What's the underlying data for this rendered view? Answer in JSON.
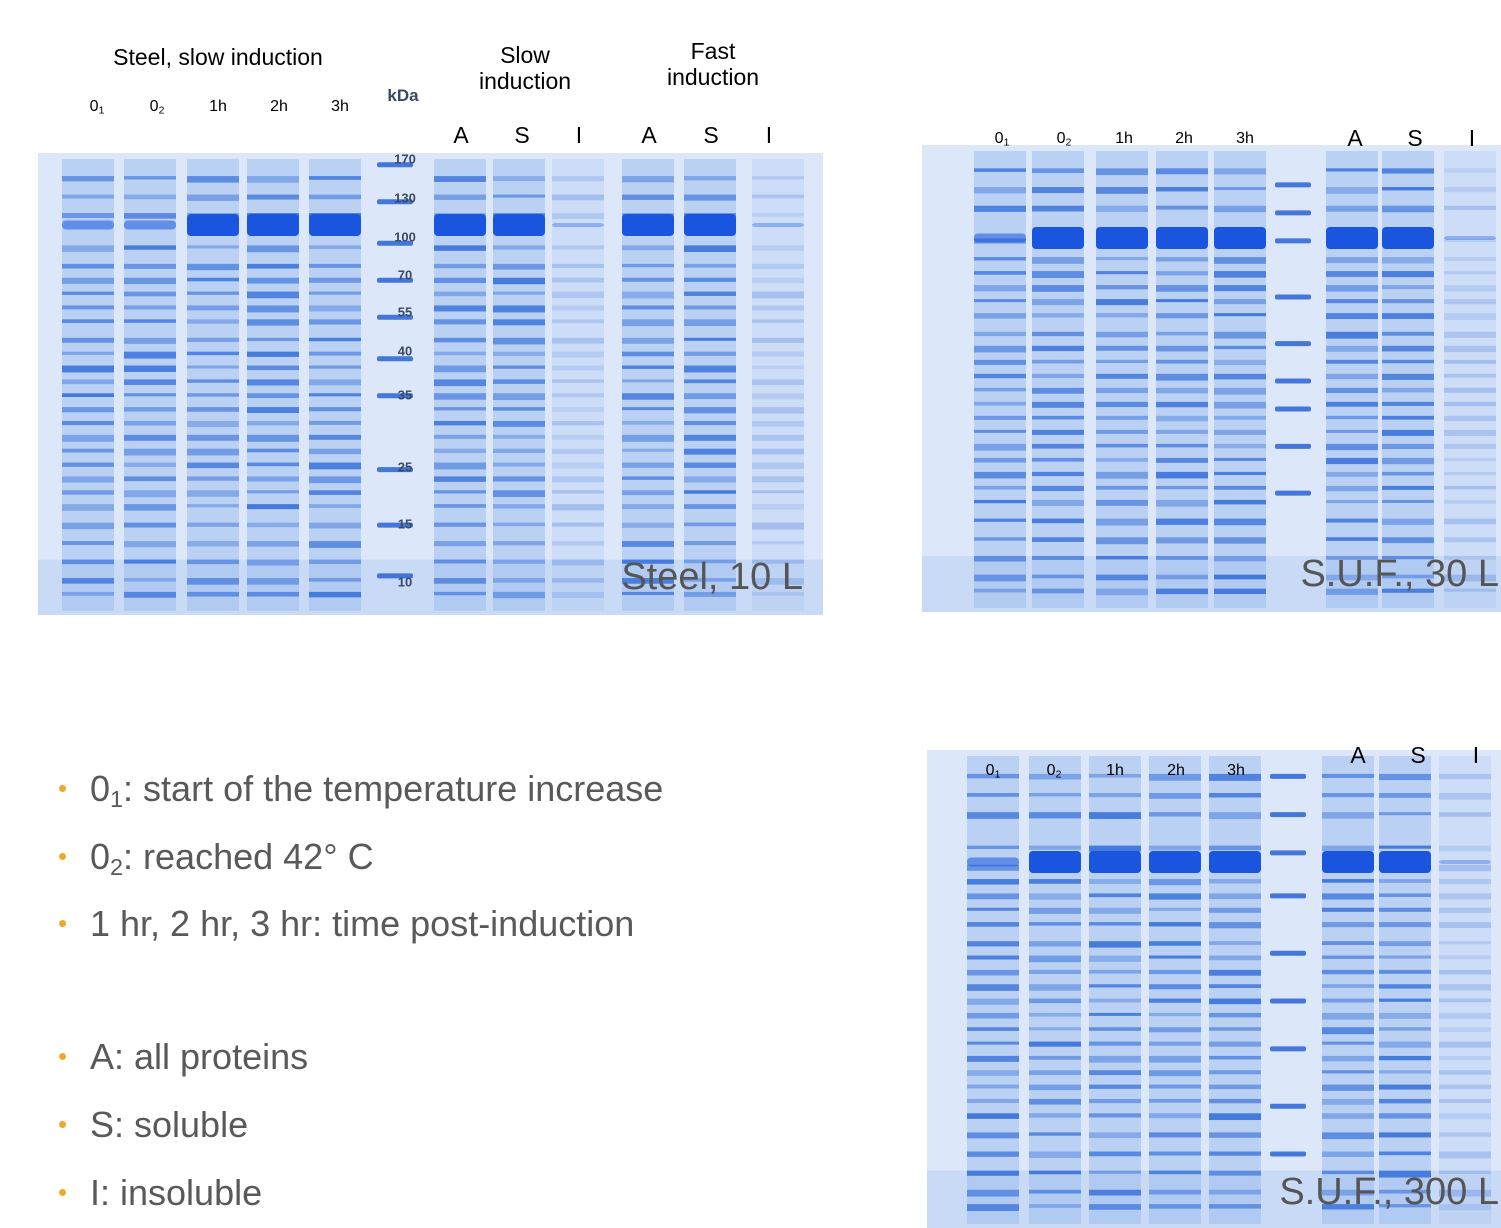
{
  "gels": [
    {
      "headers": [
        "Steel, slow induction",
        "Slow induction",
        "Fast induction"
      ],
      "lanes": [
        {
          "text": "0",
          "sub": "1"
        },
        {
          "text": "0",
          "sub": "2"
        },
        {
          "text": "1h"
        },
        {
          "text": "2h"
        },
        {
          "text": "3h"
        },
        {
          "text": "A"
        },
        {
          "text": "S"
        },
        {
          "text": "I"
        },
        {
          "text": "A"
        },
        {
          "text": "S"
        },
        {
          "text": "I"
        }
      ],
      "marker_unit": "kDa",
      "markers": [
        "170",
        "130",
        "100",
        "70",
        "55",
        "40",
        "35",
        "25",
        "15",
        "10"
      ],
      "caption": "Steel, 10 L"
    },
    {
      "lanes": [
        {
          "text": "0",
          "sub": "1"
        },
        {
          "text": "0",
          "sub": "2"
        },
        {
          "text": "1h"
        },
        {
          "text": "2h"
        },
        {
          "text": "3h"
        },
        {
          "text": "A"
        },
        {
          "text": "S"
        },
        {
          "text": "I"
        }
      ],
      "caption": "S.U.F., 30 L"
    },
    {
      "lanes": [
        {
          "text": "0",
          "sub": "1"
        },
        {
          "text": "0",
          "sub": "2"
        },
        {
          "text": "1h"
        },
        {
          "text": "2h"
        },
        {
          "text": "3h"
        },
        {
          "text": "A"
        },
        {
          "text": "S"
        },
        {
          "text": "I"
        }
      ],
      "caption": "S.U.F., 300 L"
    }
  ],
  "legend": [
    {
      "text": "0",
      "sub": "1",
      "rest": ": start of the temperature increase"
    },
    {
      "text": "0",
      "sub": "2",
      "rest": ": reached 42° C"
    },
    {
      "text": "1 hr, 2 hr, 3 hr: time post-induction"
    },
    {
      "text": "A: all proteins"
    },
    {
      "text": "S: soluble"
    },
    {
      "text": "I: insoluble"
    }
  ]
}
